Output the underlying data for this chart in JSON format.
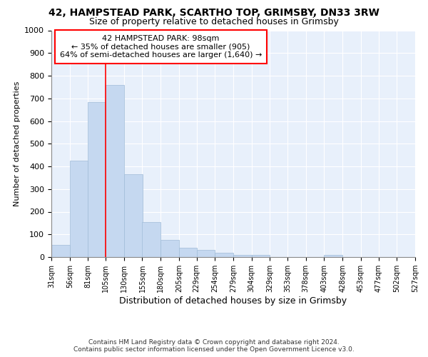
{
  "title1": "42, HAMPSTEAD PARK, SCARTHO TOP, GRIMSBY, DN33 3RW",
  "title2": "Size of property relative to detached houses in Grimsby",
  "xlabel": "Distribution of detached houses by size in Grimsby",
  "ylabel": "Number of detached properties",
  "footer1": "Contains HM Land Registry data © Crown copyright and database right 2024.",
  "footer2": "Contains public sector information licensed under the Open Government Licence v3.0.",
  "annotation_line1": "42 HAMPSTEAD PARK: 98sqm",
  "annotation_line2": "← 35% of detached houses are smaller (905)",
  "annotation_line3": "64% of semi-detached houses are larger (1,640) →",
  "bar_color": "#c5d8f0",
  "bar_edge_color": "#a0bcd8",
  "vline_color": "red",
  "bins": [
    31,
    56,
    81,
    105,
    130,
    155,
    180,
    205,
    229,
    254,
    279,
    304,
    329,
    353,
    378,
    403,
    428,
    453,
    477,
    502,
    527
  ],
  "bar_heights": [
    55,
    425,
    685,
    760,
    365,
    155,
    75,
    40,
    30,
    20,
    10,
    10,
    0,
    0,
    0,
    10,
    0,
    0,
    0,
    0,
    0
  ],
  "ylim": [
    0,
    1000
  ],
  "yticks": [
    0,
    100,
    200,
    300,
    400,
    500,
    600,
    700,
    800,
    900,
    1000
  ],
  "fig_bg_color": "#ffffff",
  "plot_bg_color": "#e8f0fb",
  "grid_color": "#ffffff",
  "title1_fontsize": 10,
  "title2_fontsize": 9
}
